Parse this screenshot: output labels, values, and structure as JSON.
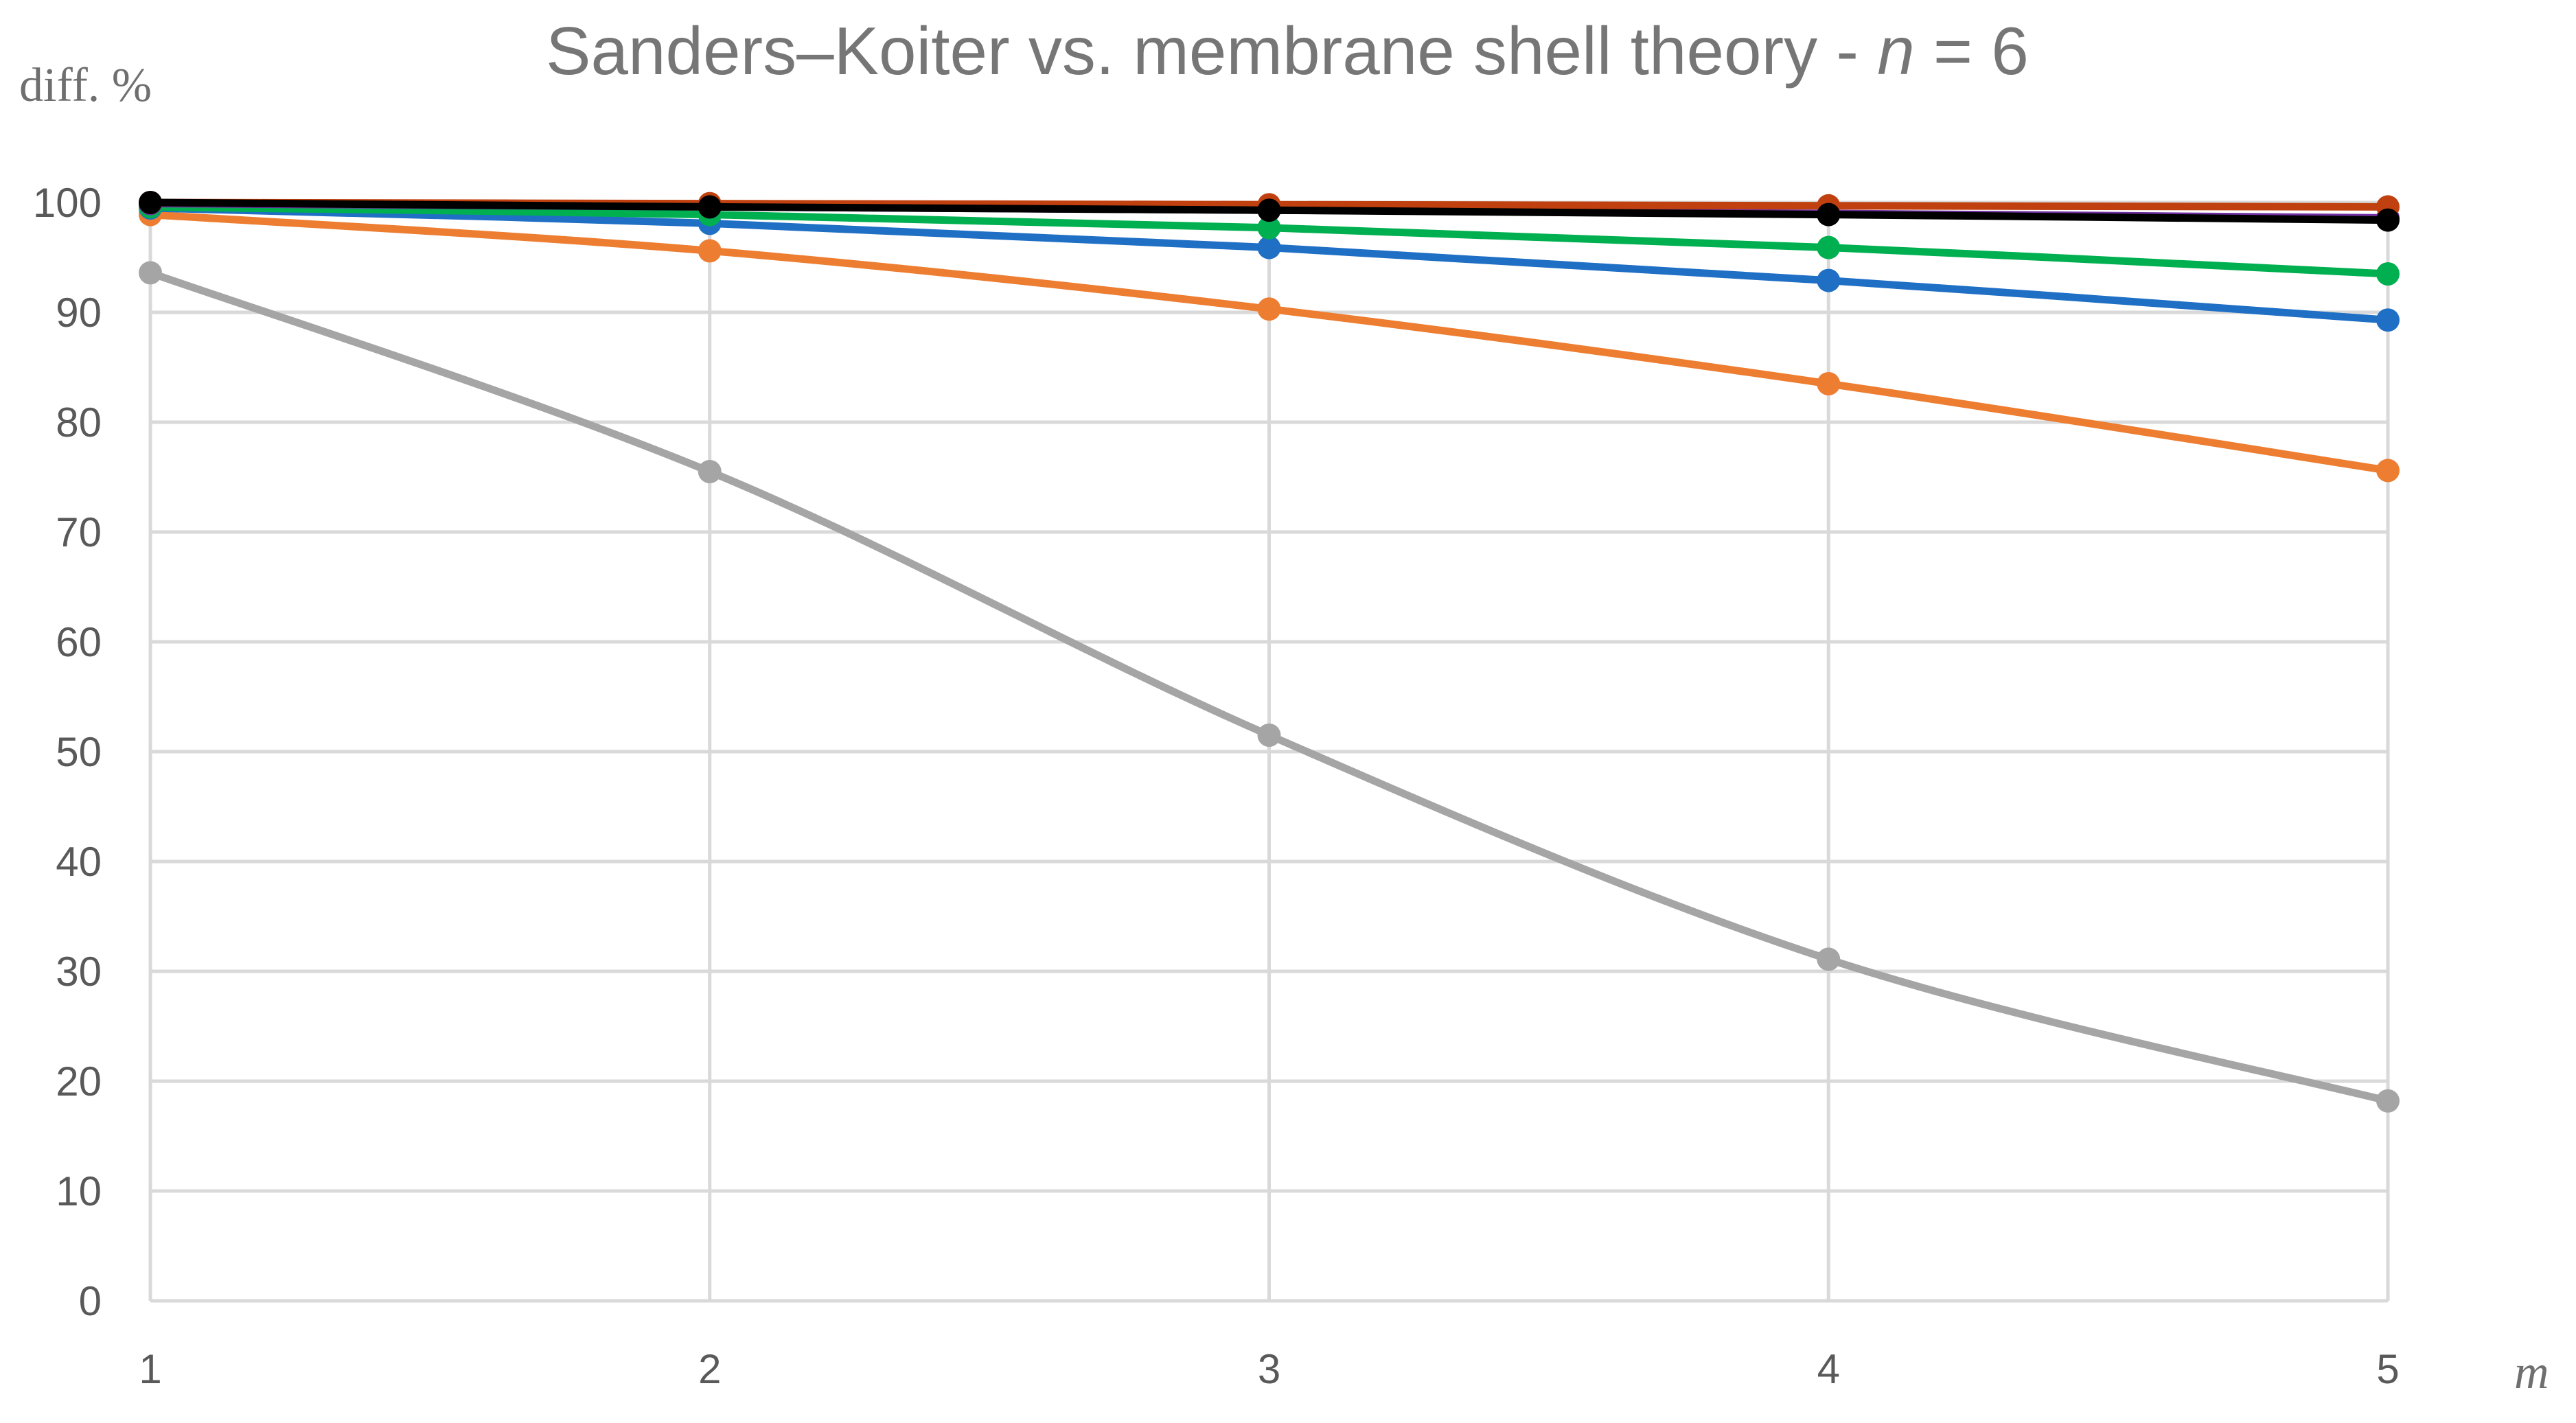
{
  "title": {
    "main": "Sanders–Koiter vs. membrane shell theory - ",
    "var": "n",
    "suffix": " = 6"
  },
  "chart_data": {
    "type": "line",
    "title": "Sanders–Koiter vs. membrane shell theory - n = 6",
    "xlabel": "m",
    "ylabel": "diff. %",
    "x": [
      1,
      2,
      3,
      4,
      5
    ],
    "xticks": [
      "1",
      "2",
      "3",
      "4",
      "5"
    ],
    "ylim": [
      0,
      100
    ],
    "yticks": [
      "0",
      "10",
      "20",
      "30",
      "40",
      "50",
      "60",
      "70",
      "80",
      "90",
      "100"
    ],
    "grid": true,
    "legend": "none",
    "series": [
      {
        "name": "gray",
        "color": "#a5a5a5",
        "values": [
          93.6,
          75.5,
          51.5,
          31.1,
          18.2
        ]
      },
      {
        "name": "orange",
        "color": "#ed7d31",
        "values": [
          98.9,
          95.6,
          90.3,
          83.5,
          75.6
        ]
      },
      {
        "name": "blue",
        "color": "#1f6fc5",
        "values": [
          99.5,
          98.1,
          95.9,
          92.9,
          89.3
        ]
      },
      {
        "name": "green",
        "color": "#00b050",
        "values": [
          99.6,
          98.9,
          97.7,
          95.9,
          93.5
        ]
      },
      {
        "name": "purple",
        "color": "#7030a0",
        "values": [
          99.9,
          99.6,
          99.3,
          99.0,
          98.6
        ]
      },
      {
        "name": "dark-red",
        "color": "#c0410f",
        "values": [
          100.0,
          99.9,
          99.8,
          99.7,
          99.6
        ]
      },
      {
        "name": "black",
        "color": "#000000",
        "values": [
          100.0,
          99.6,
          99.3,
          98.9,
          98.4
        ]
      }
    ]
  }
}
